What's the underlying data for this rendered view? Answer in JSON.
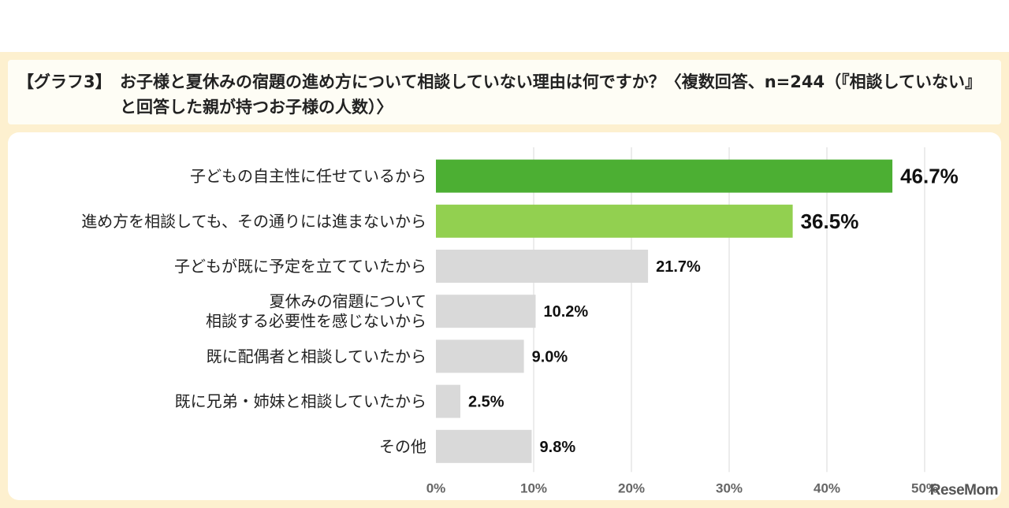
{
  "header": {
    "tag": "【グラフ3】",
    "title": "お子様と夏休みの宿題の進め方について相談していない理由は何ですか？〈複数回答、n=244（『相談していない』と回答した親が持つお子様の人数）〉"
  },
  "watermark": "ReseMom",
  "chart_data": {
    "type": "bar",
    "orientation": "horizontal",
    "title": "",
    "xlabel": "",
    "ylabel": "",
    "categories": [
      "子どもの自主性に任せているから",
      "進め方を相談しても、その通りには進まないから",
      "子どもが既に予定を立てていたから",
      "夏休みの宿題について\n相談する必要性を感じないから",
      "既に配偶者と相談していたから",
      "既に兄弟・姉妹と相談していたから",
      "その他"
    ],
    "values": [
      46.7,
      36.5,
      21.7,
      10.2,
      9.0,
      2.5,
      9.8
    ],
    "value_labels": [
      "46.7%",
      "36.5%",
      "21.7%",
      "10.2%",
      "9.0%",
      "2.5%",
      "9.8%"
    ],
    "bar_colors": [
      "#4caf33",
      "#92d050",
      "#d9d9d9",
      "#d9d9d9",
      "#d9d9d9",
      "#d9d9d9",
      "#d9d9d9"
    ],
    "xlim": [
      0,
      50
    ],
    "xticks": [
      0,
      10,
      20,
      30,
      40,
      50
    ],
    "xtick_labels": [
      "0%",
      "10%",
      "20%",
      "30%",
      "40%",
      "50%"
    ],
    "grid": "vertical",
    "legend": "none"
  }
}
